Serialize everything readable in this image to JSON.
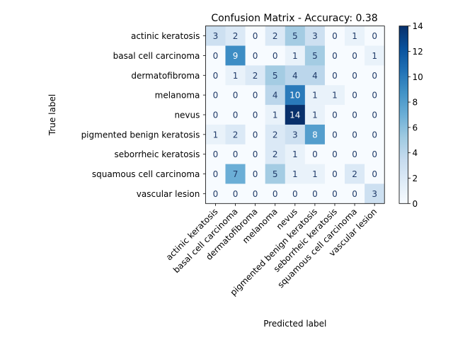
{
  "chart_data": {
    "type": "heatmap",
    "title": "Confusion Matrix - Accuracy: 0.38",
    "xlabel": "Predicted label",
    "ylabel": "True label",
    "row_labels": [
      "actinic keratosis",
      "basal cell carcinoma",
      "dermatofibroma",
      "melanoma",
      "nevus",
      "pigmented benign keratosis",
      "seborrheic keratosis",
      "squamous cell carcinoma",
      "vascular lesion"
    ],
    "col_labels": [
      "actinic keratosis",
      "basal cell carcinoma",
      "dermatofibroma",
      "melanoma",
      "nevus",
      "pigmented benign keratosis",
      "seborrheic keratosis",
      "squamous cell carcinoma",
      "vascular lesion"
    ],
    "values": [
      [
        3,
        2,
        0,
        2,
        5,
        3,
        0,
        1,
        0
      ],
      [
        0,
        9,
        0,
        0,
        1,
        5,
        0,
        0,
        1
      ],
      [
        0,
        1,
        2,
        5,
        4,
        4,
        0,
        0,
        0
      ],
      [
        0,
        0,
        0,
        4,
        10,
        1,
        1,
        0,
        0
      ],
      [
        0,
        0,
        0,
        1,
        14,
        1,
        0,
        0,
        0
      ],
      [
        1,
        2,
        0,
        2,
        3,
        8,
        0,
        0,
        0
      ],
      [
        0,
        0,
        0,
        2,
        1,
        0,
        0,
        0,
        0
      ],
      [
        0,
        7,
        0,
        5,
        1,
        1,
        0,
        2,
        0
      ],
      [
        0,
        0,
        0,
        0,
        0,
        0,
        0,
        0,
        3
      ]
    ],
    "colormap": "Blues",
    "vmin": 0,
    "vmax": 14,
    "colorbar_ticks": [
      0,
      2,
      4,
      6,
      8,
      10,
      12,
      14
    ],
    "x_tick_rotation_deg": 45
  }
}
